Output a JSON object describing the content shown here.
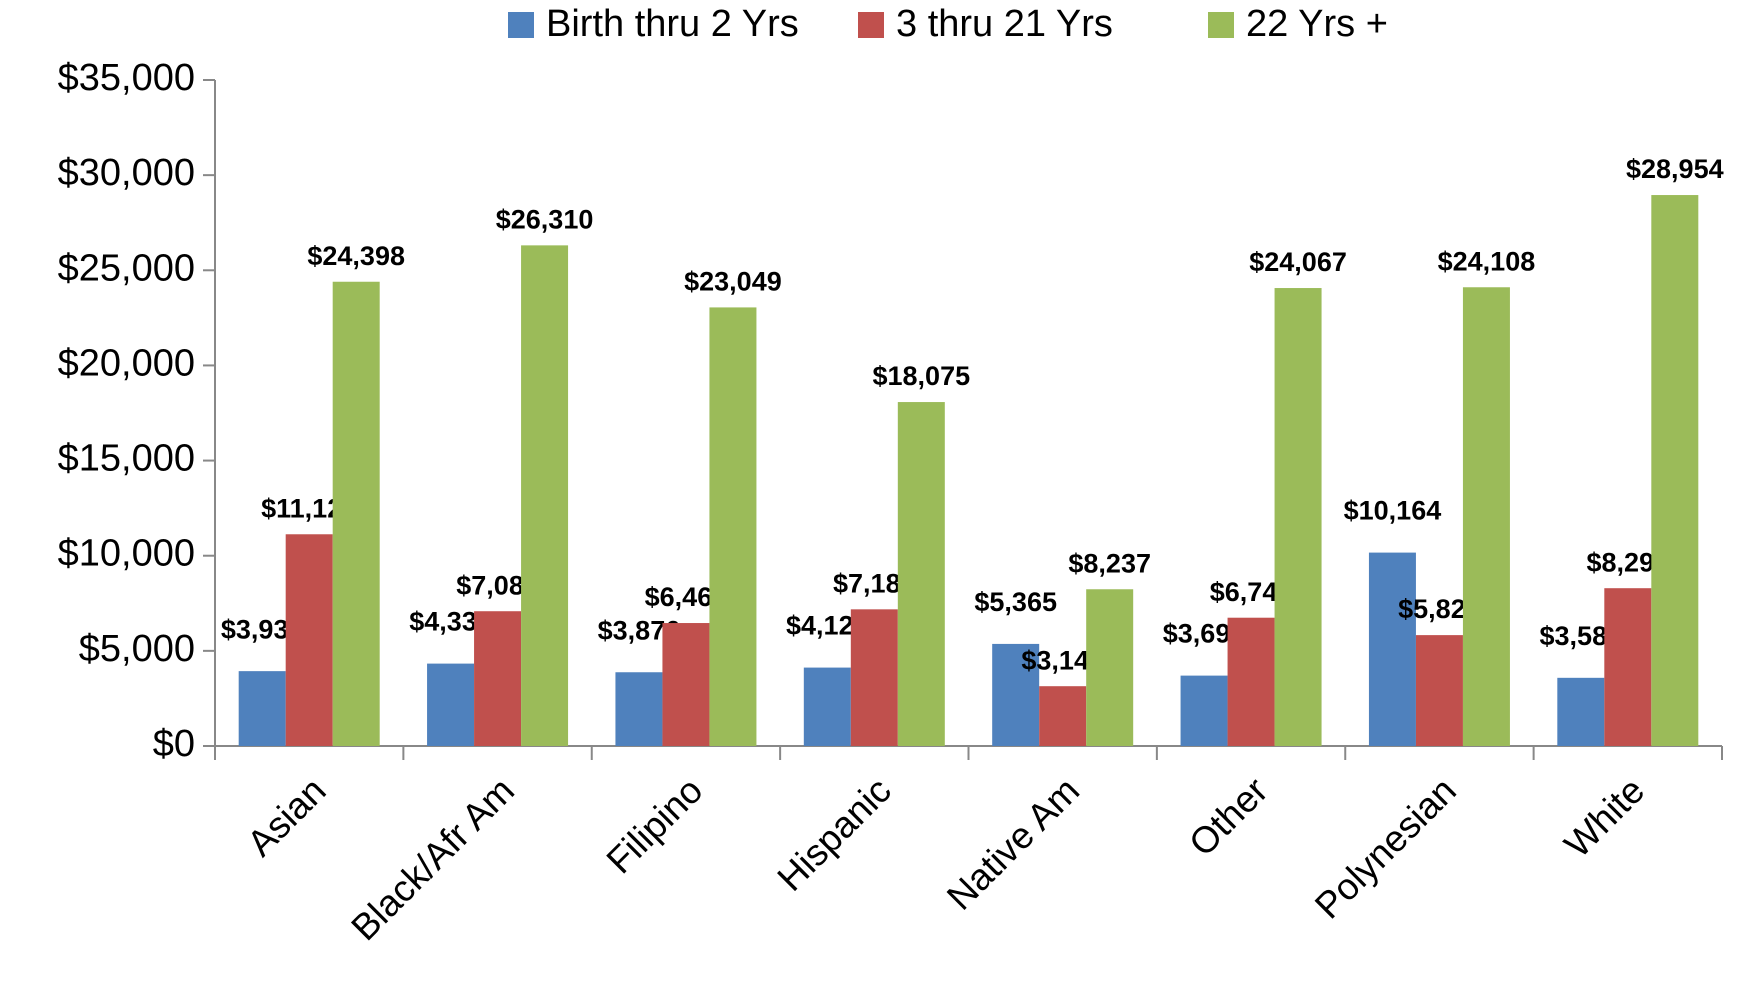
{
  "chart_data": {
    "type": "bar",
    "categories": [
      "Asian",
      "Black/Afr Am",
      "Filipino",
      "Hispanic",
      "Native Am",
      "Other",
      "Polynesian",
      "White"
    ],
    "series": [
      {
        "name": "Birth thru 2 Yrs",
        "color": "#4f81bd",
        "values": [
          3934,
          4330,
          3876,
          4121,
          5365,
          3699,
          10164,
          3583
        ],
        "value_labels": [
          "$3,934",
          "$4,330",
          "$3,876",
          "$4,121",
          "$5,365",
          "$3,699",
          "$10,164",
          "$3,583"
        ]
      },
      {
        "name": "3 thru 21 Yrs",
        "color": "#c0504d",
        "values": [
          11127,
          7083,
          6462,
          7182,
          3143,
          6742,
          5827,
          8293
        ],
        "value_labels": [
          "$11,127",
          "$7,083",
          "$6,462",
          "$7,182",
          "$3,143",
          "$6,742",
          "$5,827",
          "$8,293"
        ]
      },
      {
        "name": "22 Yrs +",
        "color": "#9bbb59",
        "values": [
          24398,
          26310,
          23049,
          18075,
          8237,
          24067,
          24108,
          28954
        ],
        "value_labels": [
          "$24,398",
          "$26,310",
          "$23,049",
          "$18,075",
          "$8,237",
          "$24,067",
          "$24,108",
          "$28,954"
        ]
      }
    ],
    "ylim": [
      0,
      35000
    ],
    "yticks": [
      {
        "value": 0,
        "label": "$0"
      },
      {
        "value": 5000,
        "label": "$5,000"
      },
      {
        "value": 10000,
        "label": "$10,000"
      },
      {
        "value": 15000,
        "label": "$15,000"
      },
      {
        "value": 20000,
        "label": "$20,000"
      },
      {
        "value": 25000,
        "label": "$25,000"
      },
      {
        "value": 30000,
        "label": "$30,000"
      },
      {
        "value": 35000,
        "label": "$35,000"
      }
    ],
    "legend": "top",
    "grid": false
  }
}
